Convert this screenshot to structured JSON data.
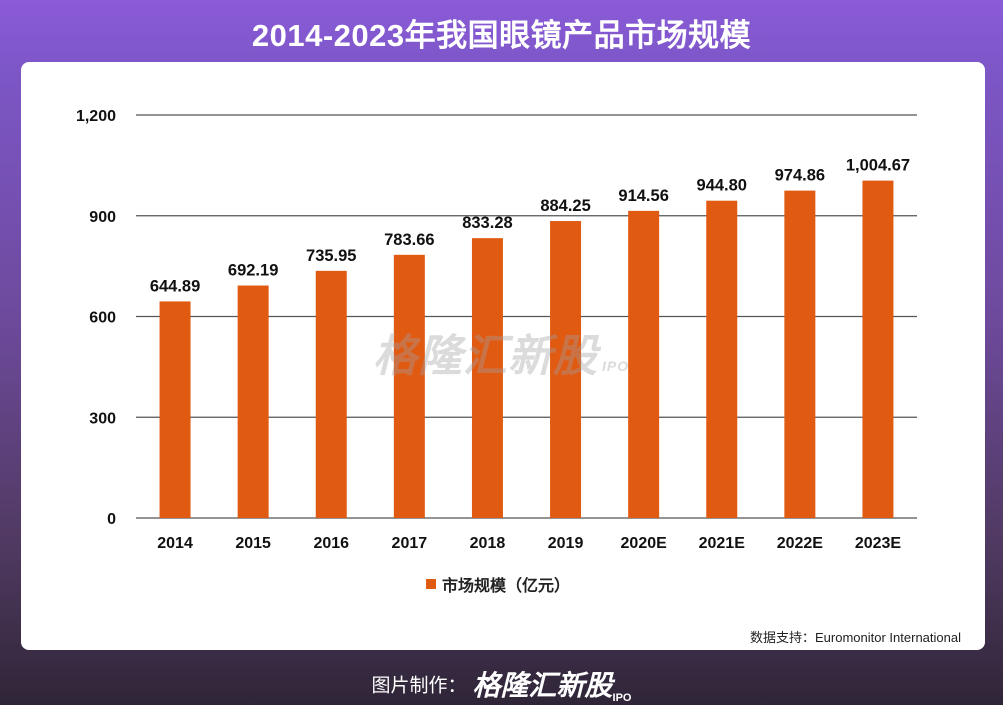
{
  "header": {
    "title": "2014-2023年我国眼镜产品市场规模"
  },
  "chart_data": {
    "type": "bar",
    "title": "2014-2023年我国眼镜产品市场规模",
    "categories": [
      "2014",
      "2015",
      "2016",
      "2017",
      "2018",
      "2019",
      "2020E",
      "2021E",
      "2022E",
      "2023E"
    ],
    "series": [
      {
        "name": "市场规模（亿元）",
        "values": [
          644.89,
          692.19,
          735.95,
          783.66,
          833.28,
          884.25,
          914.56,
          944.8,
          974.86,
          1004.67
        ],
        "labels": [
          "644.89",
          "692.19",
          "735.95",
          "783.66",
          "833.28",
          "884.25",
          "914.56",
          "944.80",
          "974.86",
          "1,004.67"
        ],
        "color": "#e15a12"
      }
    ],
    "ylim": [
      0,
      1200
    ],
    "yticks": [
      0,
      300,
      600,
      900,
      1200
    ],
    "ytick_labels": [
      "0",
      "300",
      "600",
      "900",
      "1,200"
    ],
    "grid": true,
    "legend_position": "bottom"
  },
  "watermark": {
    "text": "格隆汇新股",
    "suffix": "IPO"
  },
  "source": "数据支持：Euromonitor International",
  "footer": {
    "label": "图片制作：",
    "brand": "格隆汇新股",
    "suffix": "IPO"
  }
}
